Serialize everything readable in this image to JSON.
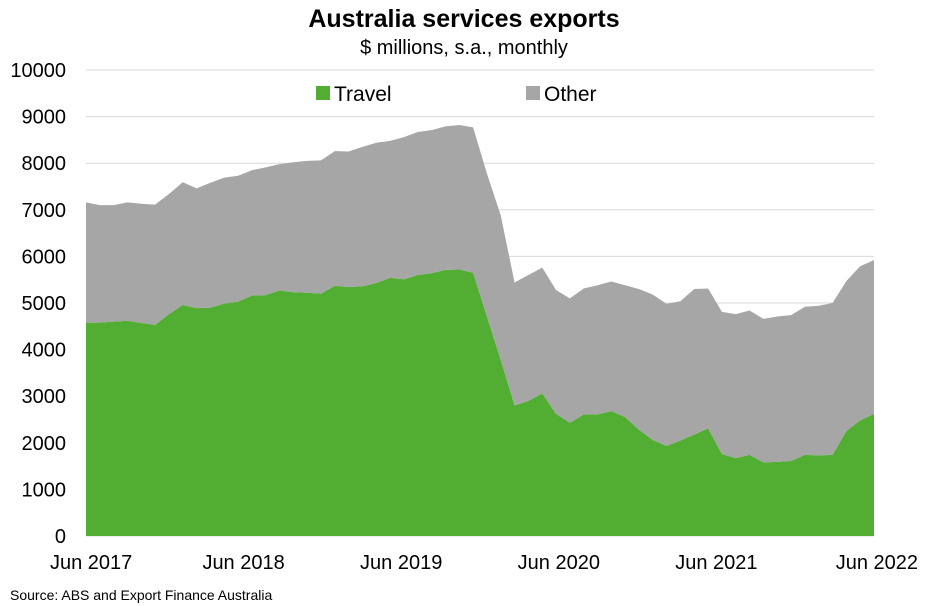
{
  "chart_data": {
    "type": "area",
    "title": "Australia services exports",
    "subtitle": "$ millions, s.a., monthly",
    "source": "Source: ABS and Export Finance Australia",
    "ylim": [
      0,
      10000
    ],
    "y_ticks": [
      0,
      1000,
      2000,
      3000,
      4000,
      5000,
      6000,
      7000,
      8000,
      9000,
      10000
    ],
    "x_ticks": [
      "Jun 2017",
      "Jun 2018",
      "Jun 2019",
      "Jun 2020",
      "Jun 2021",
      "Jun 2022"
    ],
    "x_start": "Jun 2017",
    "x_end": "Jun 2022",
    "grid": true,
    "stacked": true,
    "legend_position": "top",
    "series": [
      {
        "name": "Travel",
        "color": "#52ae32",
        "values": [
          4580,
          4580,
          4600,
          4620,
          4570,
          4530,
          4760,
          4960,
          4890,
          4900,
          4990,
          5030,
          5160,
          5170,
          5270,
          5230,
          5220,
          5200,
          5370,
          5340,
          5360,
          5430,
          5540,
          5510,
          5600,
          5640,
          5710,
          5720,
          5650,
          4710,
          3780,
          2800,
          2900,
          3060,
          2620,
          2430,
          2610,
          2610,
          2680,
          2550,
          2280,
          2060,
          1930,
          2050,
          2180,
          2310,
          1760,
          1670,
          1740,
          1580,
          1590,
          1610,
          1740,
          1730,
          1740,
          2250,
          2480,
          2620
        ]
      },
      {
        "name": "Other",
        "color": "#a6a6a6",
        "values": [
          2580,
          2520,
          2500,
          2540,
          2560,
          2580,
          2580,
          2630,
          2570,
          2680,
          2700,
          2700,
          2690,
          2740,
          2710,
          2790,
          2830,
          2860,
          2890,
          2910,
          2990,
          3010,
          2940,
          3050,
          3070,
          3070,
          3080,
          3100,
          3120,
          3070,
          3100,
          2640,
          2700,
          2700,
          2660,
          2670,
          2700,
          2770,
          2780,
          2830,
          3020,
          3120,
          3050,
          2990,
          3120,
          3000,
          3050,
          3090,
          3100,
          3080,
          3120,
          3130,
          3180,
          3210,
          3260,
          3220,
          3310,
          3300
        ]
      }
    ]
  }
}
